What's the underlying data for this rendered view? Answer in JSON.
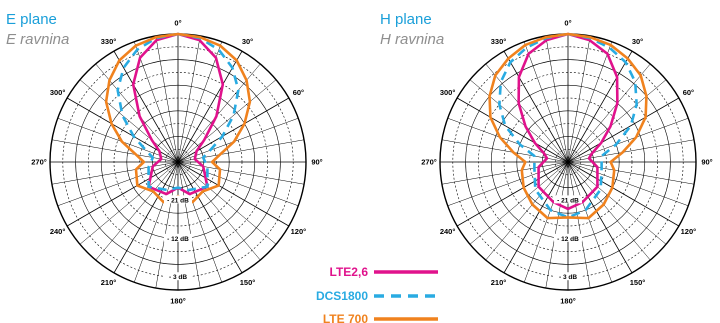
{
  "colors": {
    "lte26": "#e0128c",
    "dcs1800": "#29abe2",
    "lte700": "#f0821e",
    "title": "#1a9fd9",
    "subtitle": "#8e8e8e",
    "grid": "#000000"
  },
  "chart_data": [
    {
      "type": "polar",
      "title": "E plane",
      "subtitle": "E ravnina",
      "angle_labels": [
        "0°",
        "30°",
        "60°",
        "90°",
        "120°",
        "150°",
        "180°",
        "210°",
        "240°",
        "270°",
        "300°",
        "330°"
      ],
      "radial_labels": [
        "- 3 dB",
        "- 12 dB",
        "- 21 dB"
      ],
      "rlim_db": [
        -30,
        0
      ],
      "series": [
        {
          "name": "LTE2,6",
          "angles_deg": [
            0,
            10,
            20,
            30,
            40,
            50,
            60,
            80,
            100,
            130,
            160,
            180,
            200,
            230,
            260,
            280,
            300,
            310,
            320,
            330,
            340,
            350
          ],
          "gain_db": [
            0,
            -1,
            -4,
            -9,
            -16,
            -22,
            -25,
            -26,
            -24,
            -21,
            -22,
            -24,
            -22,
            -21,
            -24,
            -26,
            -25,
            -22,
            -16,
            -9,
            -4,
            -1
          ]
        },
        {
          "name": "DCS1800",
          "angles_deg": [
            0,
            10,
            20,
            30,
            40,
            50,
            60,
            70,
            80,
            100,
            130,
            160,
            180,
            200,
            230,
            260,
            280,
            290,
            300,
            310,
            320,
            330,
            340,
            350
          ],
          "gain_db": [
            0,
            -0.5,
            -2,
            -4.5,
            -8,
            -13,
            -18,
            -22,
            -24,
            -23,
            -21,
            -23,
            -24,
            -23,
            -21,
            -23,
            -24,
            -22,
            -18,
            -13,
            -8,
            -4.5,
            -2,
            -0.5
          ]
        },
        {
          "name": "LTE 700",
          "angles_deg": [
            0,
            10,
            20,
            30,
            40,
            50,
            60,
            70,
            80,
            90,
            100,
            120,
            140,
            160,
            180,
            200,
            220,
            240,
            260,
            270,
            280,
            290,
            300,
            310,
            320,
            330,
            340,
            350
          ],
          "gain_db": [
            0,
            -0.3,
            -1,
            -2.5,
            -5,
            -8,
            -12,
            -16,
            -20,
            -22,
            -20,
            -19,
            -21,
            -20,
            -22,
            -20,
            -21,
            -19,
            -20,
            -22,
            -20,
            -16,
            -12,
            -8,
            -5,
            -2.5,
            -1,
            -0.3
          ]
        }
      ]
    },
    {
      "type": "polar",
      "title": "H plane",
      "subtitle": "H ravnina",
      "angle_labels": [
        "0°",
        "30°",
        "60°",
        "90°",
        "120°",
        "150°",
        "180°",
        "210°",
        "240°",
        "270°",
        "300°",
        "330°"
      ],
      "radial_labels": [
        "- 3 dB",
        "- 12 dB",
        "- 21 dB"
      ],
      "rlim_db": [
        -30,
        0
      ],
      "series": [
        {
          "name": "LTE2,6",
          "angles_deg": [
            0,
            10,
            20,
            30,
            40,
            50,
            60,
            70,
            80,
            100,
            130,
            160,
            180,
            200,
            230,
            260,
            280,
            290,
            300,
            310,
            320,
            330,
            340,
            350
          ],
          "gain_db": [
            0,
            -1,
            -3,
            -7,
            -12,
            -17,
            -21,
            -24,
            -25,
            -23,
            -21,
            -20,
            -19,
            -20,
            -21,
            -23,
            -25,
            -24,
            -21,
            -17,
            -12,
            -7,
            -3,
            -1
          ]
        },
        {
          "name": "DCS1800",
          "angles_deg": [
            0,
            10,
            20,
            30,
            40,
            50,
            60,
            70,
            80,
            100,
            130,
            160,
            180,
            200,
            230,
            260,
            280,
            290,
            300,
            310,
            320,
            330,
            340,
            350
          ],
          "gain_db": [
            0,
            -0.5,
            -1.5,
            -3,
            -5.5,
            -9,
            -13,
            -18,
            -22,
            -22,
            -20,
            -18,
            -17,
            -18,
            -20,
            -22,
            -22,
            -18,
            -13,
            -9,
            -5.5,
            -3,
            -1.5,
            -0.5
          ]
        },
        {
          "name": "LTE 700",
          "angles_deg": [
            0,
            10,
            20,
            30,
            40,
            50,
            60,
            70,
            80,
            90,
            100,
            120,
            140,
            160,
            180,
            200,
            220,
            240,
            260,
            270,
            280,
            290,
            300,
            310,
            320,
            330,
            340,
            350
          ],
          "gain_db": [
            0,
            -0.3,
            -0.8,
            -2,
            -3.5,
            -6,
            -9,
            -13,
            -17,
            -20,
            -19,
            -18,
            -17,
            -16,
            -17,
            -16,
            -17,
            -18,
            -19,
            -20,
            -17,
            -13,
            -9,
            -6,
            -3.5,
            -2,
            -0.8,
            -0.3
          ]
        }
      ]
    }
  ],
  "legend": [
    {
      "label": "LTE2,6",
      "color_key": "lte26",
      "dash": "solid"
    },
    {
      "label": "DCS1800",
      "color_key": "dcs1800",
      "dash": "dashed"
    },
    {
      "label": "LTE 700",
      "color_key": "lte700",
      "dash": "solid"
    }
  ]
}
